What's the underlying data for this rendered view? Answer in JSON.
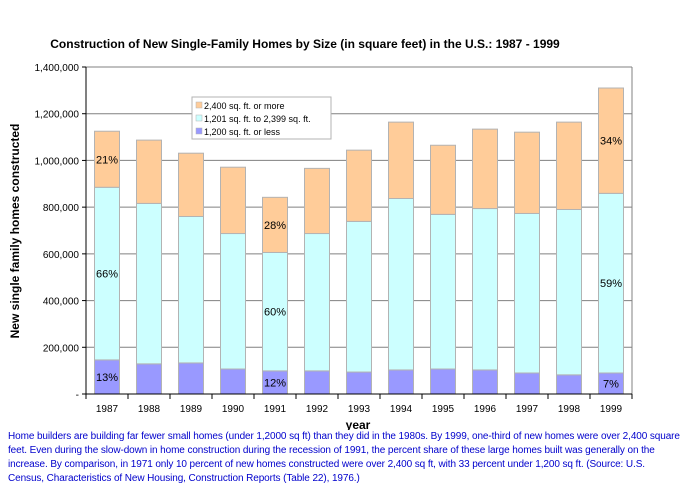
{
  "chart_data": {
    "type": "bar",
    "stacked": true,
    "title": "Construction of New Single-Family Homes by Size (in square feet) in the U.S.: 1987 - 1999",
    "xlabel": "year",
    "ylabel": "New single family homes constructed",
    "ylim": [
      0,
      1400000
    ],
    "yticks": [
      0,
      200000,
      400000,
      600000,
      800000,
      1000000,
      1200000,
      1400000
    ],
    "ytick_labels": [
      "-",
      "200,000",
      "400,000",
      "600,000",
      "800,000",
      "1,000,000",
      "1,200,000",
      "1,400,000"
    ],
    "grid": true,
    "legend_position": "top-left-inside",
    "categories": [
      "1987",
      "1988",
      "1989",
      "1990",
      "1991",
      "1992",
      "1993",
      "1994",
      "1995",
      "1996",
      "1997",
      "1998",
      "1999"
    ],
    "series": [
      {
        "name": "1,200 sq. ft. or less",
        "color": "#9999ff",
        "values": [
          146000,
          129000,
          133000,
          107000,
          99000,
          99000,
          94000,
          103000,
          107000,
          103000,
          90000,
          82000,
          90000
        ],
        "labels": [
          "13%",
          "",
          "",
          "",
          "12%",
          "",
          "",
          "",
          "",
          "",
          "",
          "",
          "7%"
        ]
      },
      {
        "name": "1,201 sq. ft. to 2,399 sq. ft.",
        "color": "#ccffff",
        "values": [
          739000,
          687000,
          627000,
          580000,
          507000,
          588000,
          645000,
          734000,
          662000,
          691000,
          683000,
          708000,
          769000
        ],
        "labels": [
          "66%",
          "",
          "",
          "",
          "60%",
          "",
          "",
          "",
          "",
          "",
          "",
          "",
          "59%"
        ]
      },
      {
        "name": "2,400 sq. ft. or more",
        "color": "#ffcc99",
        "values": [
          240000,
          271000,
          271000,
          284000,
          236000,
          279000,
          305000,
          327000,
          296000,
          340000,
          348000,
          374000,
          451000
        ],
        "labels": [
          "21%",
          "",
          "",
          "",
          "28%",
          "",
          "",
          "",
          "",
          "",
          "",
          "",
          "34%"
        ]
      }
    ]
  },
  "footnote": "Home builders are building far fewer small homes (under 1,2000 sq ft) than they did in the 1980s.  By 1999, one-third of new homes were over 2,400 square feet.  Even during the slow-down in home construction during the recession of 1991, the percent share of these large homes built was generally on the increase.  By comparison, in 1971 only 10 percent of new homes constructed were over 2,400 sq ft, with 33 percent under 1,200 sq ft.  (Source:  U.S. Census, Characteristics of New Housing, Construction Reports (Table 22), 1976.)"
}
